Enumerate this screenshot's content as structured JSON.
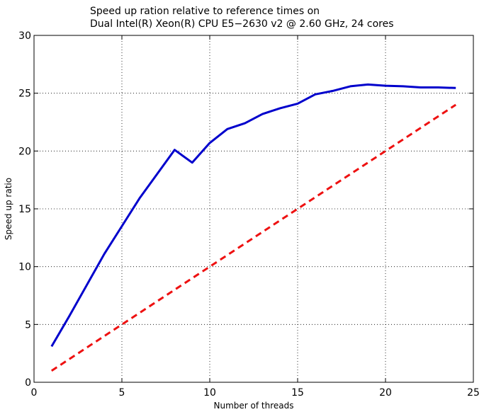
{
  "chart_data": {
    "type": "line",
    "title": [
      "Speed up ration relative to reference times on",
      "Dual Intel(R) Xeon(R) CPU E5−2630 v2 @ 2.60 GHz, 24 cores"
    ],
    "xlabel": "Number of threads",
    "ylabel": "Speed up ratio",
    "xlim": [
      0,
      25
    ],
    "ylim": [
      0,
      30
    ],
    "xticks": [
      0,
      5,
      10,
      15,
      20,
      25
    ],
    "yticks": [
      0,
      5,
      10,
      15,
      20,
      25,
      30
    ],
    "grid": true,
    "series": [
      {
        "style": "solid",
        "color": "#0000cc",
        "x": [
          1,
          2,
          3,
          4,
          5,
          6,
          7,
          8,
          9,
          10,
          11,
          12,
          13,
          14,
          15,
          16,
          17,
          18,
          19,
          20,
          21,
          22,
          23,
          24
        ],
        "values": [
          3.1,
          5.7,
          8.4,
          11.1,
          13.5,
          15.9,
          18.0,
          20.1,
          19.0,
          20.7,
          21.9,
          22.4,
          23.2,
          23.7,
          24.1,
          24.9,
          25.2,
          25.6,
          25.75,
          25.65,
          25.6,
          25.5,
          25.5,
          25.45
        ]
      },
      {
        "style": "dashed",
        "color": "#ee1111",
        "x": [
          1,
          24
        ],
        "values": [
          1,
          24
        ]
      }
    ]
  }
}
